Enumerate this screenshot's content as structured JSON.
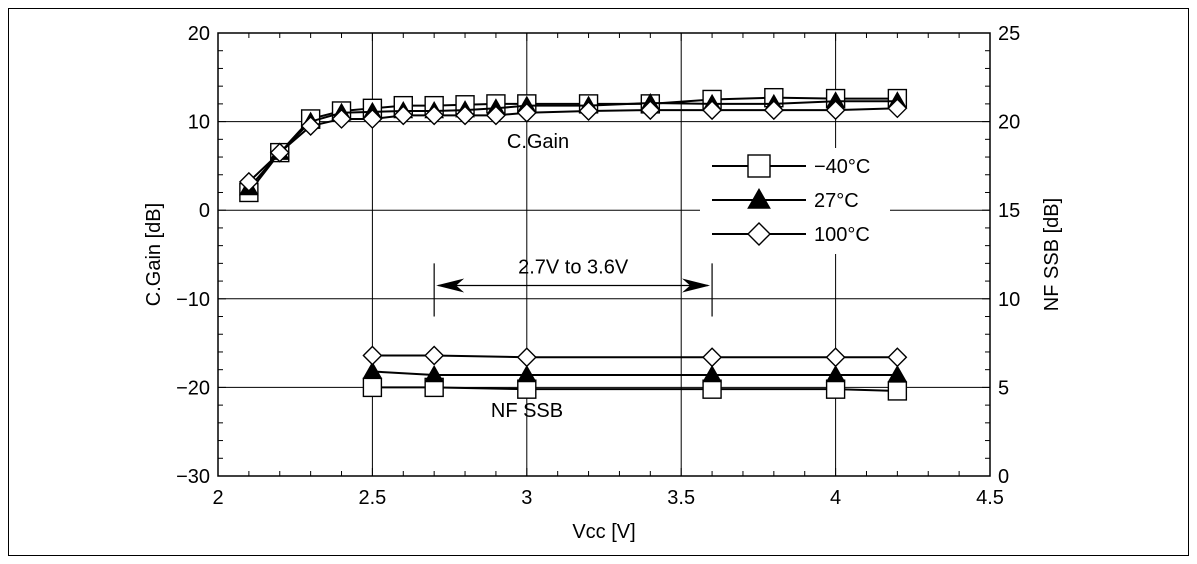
{
  "chart_data": {
    "type": "line",
    "xlabel": "Vcc [V]",
    "ylabel_left": "C.Gain [dB]",
    "ylabel_right": "NF SSB [dB]",
    "xlim": [
      2,
      4.5
    ],
    "ylim_left": [
      -30,
      20
    ],
    "ylim_right": [
      0,
      25
    ],
    "x_ticks": [
      "2",
      "2.5",
      "3",
      "3.5",
      "4",
      "4.5"
    ],
    "y_ticks_left": [
      "20",
      "10",
      "0",
      "−10",
      "−20",
      "−30"
    ],
    "y_ticks_right": [
      "25",
      "20",
      "15",
      "10",
      "5",
      "0"
    ],
    "grid": true,
    "legend_position": "upper-right",
    "legend": [
      {
        "label": "−40°C",
        "marker": "square"
      },
      {
        "label": "27°C",
        "marker": "filled-triangle"
      },
      {
        "label": "100°C",
        "marker": "diamond"
      }
    ],
    "annotations": {
      "gain_label": "C.Gain",
      "nf_label": "NF SSB",
      "range_label": "2.7V to 3.6V",
      "range_from": 2.7,
      "range_to": 3.6
    },
    "gain_series": [
      {
        "marker": "square",
        "x": [
          2.1,
          2.2,
          2.3,
          2.4,
          2.5,
          2.6,
          2.7,
          2.8,
          2.9,
          3.0,
          3.2,
          3.4,
          3.6,
          3.8,
          4.0,
          4.2
        ],
        "y": [
          2.0,
          6.5,
          10.3,
          11.2,
          11.5,
          11.8,
          11.8,
          11.9,
          12.0,
          12.0,
          12.0,
          12.0,
          12.5,
          12.7,
          12.6,
          12.6
        ]
      },
      {
        "marker": "filled-triangle",
        "x": [
          2.1,
          2.2,
          2.3,
          2.4,
          2.5,
          2.6,
          2.7,
          2.8,
          2.9,
          3.0,
          3.2,
          3.4,
          3.6,
          3.8,
          4.0,
          4.2
        ],
        "y": [
          2.5,
          6.5,
          10.0,
          11.0,
          11.1,
          11.2,
          11.2,
          11.3,
          11.5,
          11.8,
          11.8,
          12.1,
          12.0,
          12.0,
          12.3,
          12.3
        ]
      },
      {
        "marker": "diamond",
        "x": [
          2.1,
          2.2,
          2.3,
          2.4,
          2.5,
          2.6,
          2.7,
          2.8,
          2.9,
          3.0,
          3.2,
          3.4,
          3.6,
          3.8,
          4.0,
          4.2
        ],
        "y": [
          3.2,
          6.5,
          9.5,
          10.3,
          10.3,
          10.7,
          10.7,
          10.7,
          10.7,
          11.0,
          11.2,
          11.3,
          11.3,
          11.3,
          11.3,
          11.5
        ]
      }
    ],
    "nf_series": [
      {
        "marker": "square",
        "x": [
          2.5,
          2.7,
          3.0,
          3.6,
          4.0,
          4.2
        ],
        "y": [
          5.0,
          5.0,
          4.9,
          4.9,
          4.9,
          4.8
        ]
      },
      {
        "marker": "filled-triangle",
        "x": [
          2.5,
          2.7,
          3.0,
          3.6,
          4.0,
          4.2
        ],
        "y": [
          5.9,
          5.7,
          5.7,
          5.7,
          5.7,
          5.7
        ]
      },
      {
        "marker": "diamond",
        "x": [
          2.5,
          2.7,
          3.0,
          3.6,
          4.0,
          4.2
        ],
        "y": [
          6.8,
          6.8,
          6.7,
          6.7,
          6.7,
          6.7
        ]
      }
    ]
  }
}
